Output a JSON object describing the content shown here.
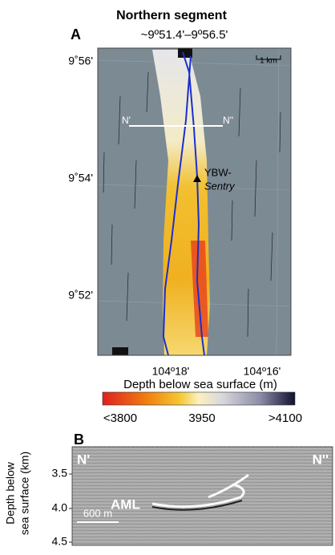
{
  "panel_a": {
    "label": "A",
    "title": "Northern segment",
    "subtitle": "~9º51.4'–9º56.5'",
    "lat_labels": [
      "9˚56'",
      "9˚54'",
      "9˚52'"
    ],
    "lon_labels": [
      "104º18'",
      "104º16'"
    ],
    "scale_bar": "1 km",
    "transect_start": "N'",
    "transect_end": "N''",
    "site_label": [
      "YBW-",
      "Sentry"
    ],
    "colorbar": {
      "label": "Depth below sea surface (m)",
      "ticks": [
        "<3800",
        "3950",
        ">4100"
      ]
    }
  },
  "panel_b": {
    "label": "B",
    "left_end": "N'",
    "right_end": "N''",
    "feature": "AML",
    "scale_bar": "600 m",
    "y_label": [
      "Depth below",
      "sea surface (km)"
    ],
    "y_ticks": [
      "3.5",
      "4.0",
      "4.5"
    ]
  }
}
